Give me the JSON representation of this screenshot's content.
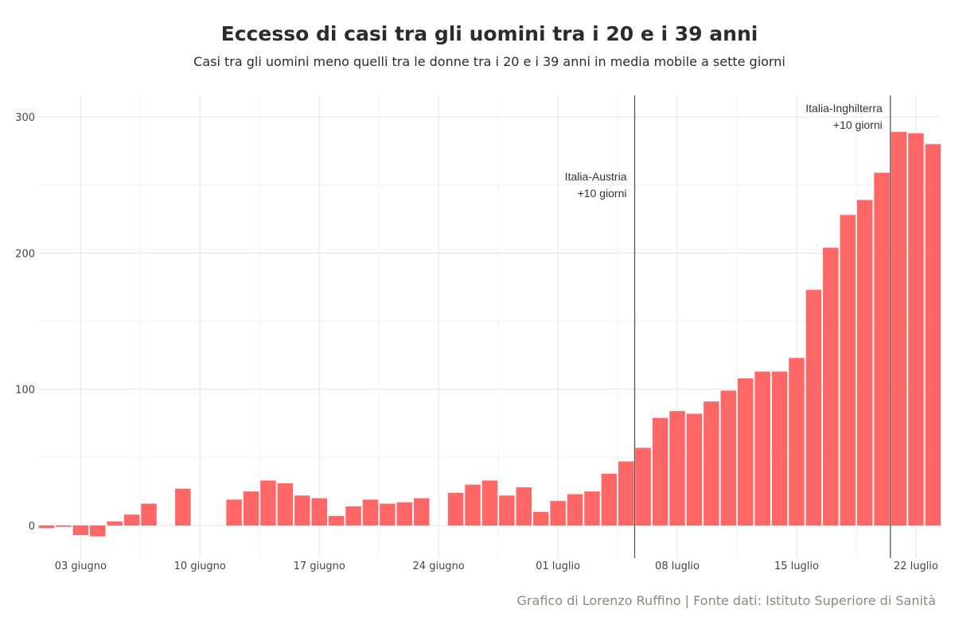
{
  "chart_data": {
    "type": "bar",
    "title": "Eccesso di casi tra gli uomini tra i 20 e i 39 anni",
    "subtitle": "Casi tra gli uomini meno quelli tra le donne tra i 20 e i 39 anni in media mobile a sette giorni",
    "caption": "Grafico di Lorenzo Ruffino | Fonte dati: Istituto Superiore di Sanità",
    "xlabel": "",
    "ylabel": "",
    "ylim": [
      -22,
      315
    ],
    "yticks": [
      0,
      100,
      200,
      300
    ],
    "grid": true,
    "bar_color": "#ff6666",
    "x_tick_labels": [
      {
        "label": "03 giugno",
        "index": 2
      },
      {
        "label": "10 giugno",
        "index": 9
      },
      {
        "label": "17 giugno",
        "index": 16
      },
      {
        "label": "24 giugno",
        "index": 23
      },
      {
        "label": "01 luglio",
        "index": 30
      },
      {
        "label": "08 luglio",
        "index": 37
      },
      {
        "label": "15 luglio",
        "index": 44
      },
      {
        "label": "22 luglio",
        "index": 51
      }
    ],
    "values": [
      -2,
      -1,
      -7,
      -8,
      3,
      8,
      16,
      null,
      27,
      null,
      null,
      19,
      25,
      33,
      31,
      22,
      20,
      7,
      14,
      19,
      16,
      17,
      20,
      null,
      24,
      30,
      33,
      22,
      28,
      10,
      18,
      23,
      25,
      38,
      47,
      57,
      79,
      84,
      82,
      91,
      99,
      108,
      113,
      113,
      123,
      173,
      204,
      228,
      239,
      259,
      289,
      288,
      280
    ],
    "annotations": [
      {
        "lines": [
          "Italia-Austria",
          "+10 giorni"
        ],
        "at_index": 34.5
      },
      {
        "lines": [
          "Italia-Inghilterra",
          "+10 giorni"
        ],
        "at_index": 49.5
      }
    ]
  }
}
